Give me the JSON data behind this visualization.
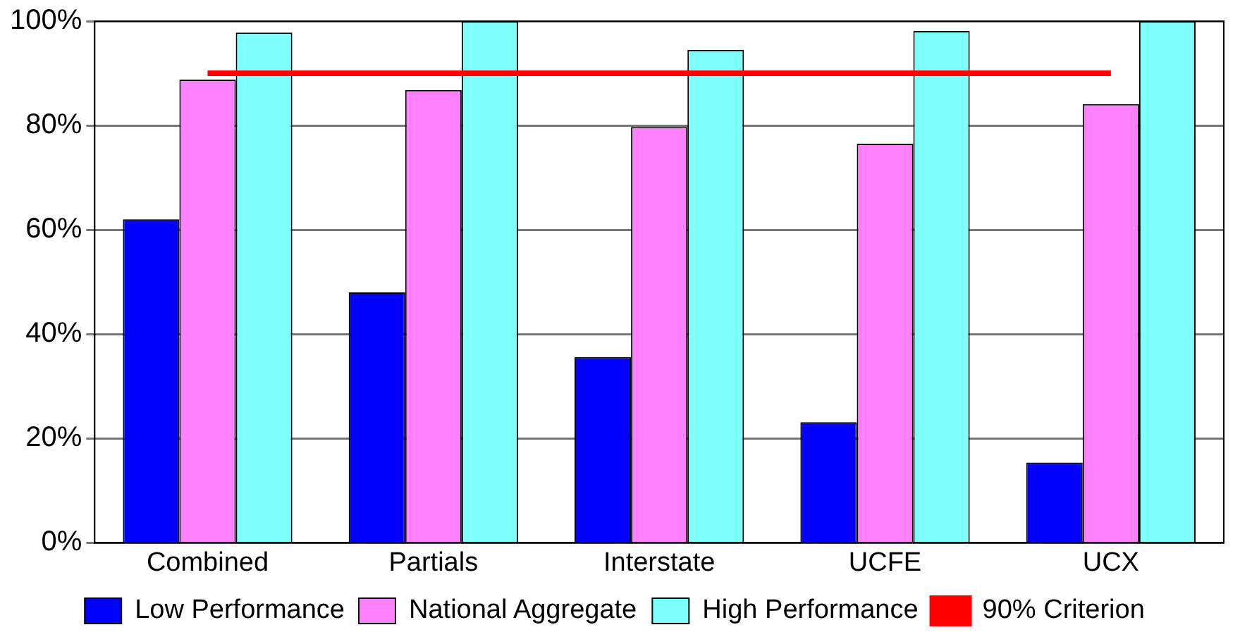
{
  "chart_data": {
    "type": "bar",
    "categories": [
      "Combined",
      "Partials",
      "Interstate",
      "UCFE",
      "UCX"
    ],
    "series": [
      {
        "name": "Low Performance",
        "color": "#0000ff",
        "values": [
          62,
          48,
          35.6,
          23.1,
          15.4
        ]
      },
      {
        "name": "National Aggregate",
        "color": "#ff80ff",
        "values": [
          88.8,
          86.8,
          79.7,
          76.5,
          84.1
        ]
      },
      {
        "name": "High Performance",
        "color": "#80ffff",
        "values": [
          97.8,
          100,
          94.5,
          98.1,
          100
        ]
      },
      {
        "name": "90% Criterion",
        "color": "#ff0000",
        "type": "line",
        "values": [
          90,
          90,
          90,
          90,
          90
        ]
      }
    ],
    "ylim": [
      0,
      100
    ],
    "yticks": [
      {
        "value": 0,
        "label": "0%"
      },
      {
        "value": 20,
        "label": "20%"
      },
      {
        "value": 40,
        "label": "40%"
      },
      {
        "value": 60,
        "label": "60%"
      },
      {
        "value": 80,
        "label": "80%"
      },
      {
        "value": 100,
        "label": "100%"
      }
    ],
    "grid": "y",
    "legend": "bottom",
    "marker": "none",
    "line_style": "solid"
  }
}
